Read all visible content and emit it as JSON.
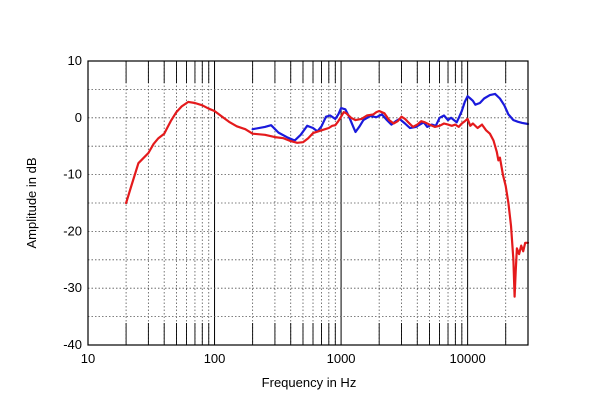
{
  "chart_data": {
    "type": "line",
    "title": "",
    "xlabel": "Frequency in Hz",
    "ylabel": "Amplitude in dB",
    "x_scale": "log",
    "xlim": [
      10,
      30000
    ],
    "ylim": [
      -40,
      10
    ],
    "grid": true,
    "legend": "none",
    "x_ticks": [
      10,
      100,
      1000,
      10000
    ],
    "x_tick_labels": [
      "10",
      "100",
      "1000",
      "10000"
    ],
    "y_ticks": [
      10,
      0,
      -10,
      -20,
      -30,
      -40
    ],
    "y_tick_labels": [
      "10",
      "0",
      "-10",
      "-20",
      "-30",
      "-40"
    ],
    "series": [
      {
        "color": "#1a1adc",
        "points": [
          [
            200,
            -2.0
          ],
          [
            250,
            -1.6
          ],
          [
            280,
            -1.3
          ],
          [
            320,
            -2.6
          ],
          [
            380,
            -3.5
          ],
          [
            430,
            -4.0
          ],
          [
            480,
            -3.0
          ],
          [
            540,
            -1.4
          ],
          [
            600,
            -1.8
          ],
          [
            650,
            -2.4
          ],
          [
            700,
            -1.5
          ],
          [
            760,
            0.2
          ],
          [
            820,
            0.4
          ],
          [
            900,
            -0.2
          ],
          [
            950,
            0.6
          ],
          [
            1000,
            1.7
          ],
          [
            1080,
            1.5
          ],
          [
            1150,
            0.3
          ],
          [
            1250,
            -1.6
          ],
          [
            1300,
            -2.5
          ],
          [
            1400,
            -1.5
          ],
          [
            1500,
            -0.4
          ],
          [
            1700,
            0.3
          ],
          [
            1900,
            0.1
          ],
          [
            2100,
            0.6
          ],
          [
            2300,
            -0.4
          ],
          [
            2500,
            -1.2
          ],
          [
            2700,
            -0.6
          ],
          [
            2900,
            -0.2
          ],
          [
            3200,
            -1.0
          ],
          [
            3500,
            -1.8
          ],
          [
            3900,
            -1.6
          ],
          [
            4200,
            -1.2
          ],
          [
            4500,
            -0.8
          ],
          [
            4800,
            -1.6
          ],
          [
            5200,
            -1.2
          ],
          [
            5600,
            -1.4
          ],
          [
            6000,
            0.0
          ],
          [
            6500,
            0.4
          ],
          [
            7000,
            -0.4
          ],
          [
            7400,
            0.0
          ],
          [
            7800,
            -0.4
          ],
          [
            8200,
            -0.8
          ],
          [
            8600,
            0.2
          ],
          [
            9000,
            1.2
          ],
          [
            9500,
            2.8
          ],
          [
            10000,
            3.8
          ],
          [
            10500,
            3.4
          ],
          [
            11000,
            3.0
          ],
          [
            11500,
            2.3
          ],
          [
            12500,
            2.6
          ],
          [
            13500,
            3.4
          ],
          [
            15000,
            4.0
          ],
          [
            16500,
            4.2
          ],
          [
            18000,
            3.4
          ],
          [
            19500,
            2.2
          ],
          [
            21000,
            0.6
          ],
          [
            23000,
            -0.4
          ],
          [
            25000,
            -0.7
          ],
          [
            27000,
            -0.9
          ],
          [
            30000,
            -1.1
          ]
        ]
      },
      {
        "color": "#e41a1c",
        "points": [
          [
            20,
            -15.0
          ],
          [
            22,
            -12.0
          ],
          [
            25,
            -8.0
          ],
          [
            30,
            -6.2
          ],
          [
            33,
            -4.6
          ],
          [
            36,
            -3.6
          ],
          [
            40,
            -2.8
          ],
          [
            45,
            -0.6
          ],
          [
            50,
            1.0
          ],
          [
            55,
            2.0
          ],
          [
            62,
            2.8
          ],
          [
            70,
            2.6
          ],
          [
            80,
            2.2
          ],
          [
            90,
            1.6
          ],
          [
            100,
            1.2
          ],
          [
            115,
            0.2
          ],
          [
            130,
            -0.7
          ],
          [
            150,
            -1.5
          ],
          [
            175,
            -2.0
          ],
          [
            200,
            -2.8
          ],
          [
            250,
            -3.0
          ],
          [
            300,
            -3.4
          ],
          [
            350,
            -3.6
          ],
          [
            400,
            -4.1
          ],
          [
            450,
            -4.4
          ],
          [
            500,
            -4.3
          ],
          [
            550,
            -3.6
          ],
          [
            600,
            -2.7
          ],
          [
            700,
            -2.2
          ],
          [
            800,
            -1.8
          ],
          [
            850,
            -1.4
          ],
          [
            900,
            -1.3
          ],
          [
            950,
            -0.6
          ],
          [
            1000,
            0.2
          ],
          [
            1050,
            1.0
          ],
          [
            1100,
            0.8
          ],
          [
            1200,
            0.0
          ],
          [
            1300,
            -0.4
          ],
          [
            1450,
            -0.2
          ],
          [
            1600,
            0.4
          ],
          [
            1800,
            0.6
          ],
          [
            1900,
            1.0
          ],
          [
            2000,
            1.2
          ],
          [
            2200,
            0.8
          ],
          [
            2400,
            -0.4
          ],
          [
            2600,
            -1.0
          ],
          [
            2800,
            -0.6
          ],
          [
            3000,
            0.2
          ],
          [
            3200,
            -0.2
          ],
          [
            3400,
            -0.8
          ],
          [
            3700,
            -1.6
          ],
          [
            4000,
            -1.2
          ],
          [
            4300,
            -0.6
          ],
          [
            4600,
            -0.8
          ],
          [
            5000,
            -1.2
          ],
          [
            5500,
            -1.6
          ],
          [
            6000,
            -1.4
          ],
          [
            6500,
            -1.0
          ],
          [
            7000,
            -1.2
          ],
          [
            7500,
            -1.4
          ],
          [
            8000,
            -1.2
          ],
          [
            8500,
            -1.6
          ],
          [
            9000,
            -1.0
          ],
          [
            9500,
            -0.6
          ],
          [
            10000,
            -0.2
          ],
          [
            10500,
            -1.4
          ],
          [
            11000,
            -1.0
          ],
          [
            12000,
            -1.8
          ],
          [
            13000,
            -1.2
          ],
          [
            14000,
            -2.2
          ],
          [
            15000,
            -2.8
          ],
          [
            16000,
            -4.0
          ],
          [
            17000,
            -6.0
          ],
          [
            17500,
            -7.5
          ],
          [
            18000,
            -7.0
          ],
          [
            19000,
            -10.0
          ],
          [
            20000,
            -12.0
          ],
          [
            21000,
            -15.0
          ],
          [
            22000,
            -19.0
          ],
          [
            23000,
            -25.0
          ],
          [
            23500,
            -31.5
          ],
          [
            24000,
            -27.0
          ],
          [
            24500,
            -23.0
          ],
          [
            25500,
            -24.0
          ],
          [
            26500,
            -22.5
          ],
          [
            27500,
            -23.5
          ],
          [
            28500,
            -22.0
          ],
          [
            30000,
            -22.0
          ]
        ]
      }
    ]
  }
}
